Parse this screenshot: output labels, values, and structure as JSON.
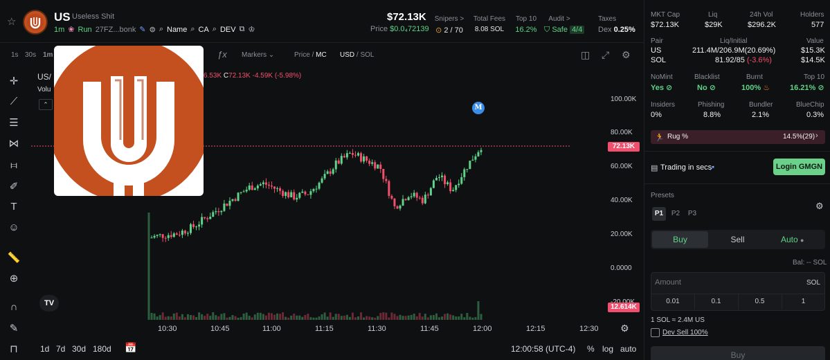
{
  "token": {
    "symbol": "US",
    "name": "Useless Shit",
    "age": "1m",
    "run_label": "Run",
    "address": "27FZ...bonk",
    "name_label": "Name",
    "ca_label": "CA",
    "dev_label": "DEV"
  },
  "price": {
    "mc": "$72.13K",
    "price_label": "Price",
    "price_value": "$0.0₄72139"
  },
  "stats": [
    {
      "label": "Snipers >",
      "value": "2 / 70",
      "color": "#e6e6e6"
    },
    {
      "label": "Total Fees",
      "value": "8.08 SOL",
      "color": "#e6e6e6"
    },
    {
      "label": "Top 10",
      "value": "16.2%",
      "color": "#5fd38a"
    },
    {
      "label": "Audit >",
      "value": "Safe",
      "extra": "4/4",
      "color": "#5fd38a"
    },
    {
      "label": "Taxes",
      "value_prefix": "Dex",
      "value": "0.25%",
      "color": "#e6e6e6"
    }
  ],
  "toolbar": {
    "intervals": [
      "1s",
      "30s",
      "1m"
    ],
    "markers": "Markers",
    "price_mc_a": "Price",
    "price_mc_b": "MC",
    "usd_sol_a": "USD",
    "usd_sol_b": "SOL"
  },
  "legend": {
    "pair": "US/",
    "volume": "Volu",
    "ohlc_tail": "6.53K",
    "close_label": "C",
    "close": "72.13K",
    "change": "-4.59K (-5.98%)"
  },
  "marker_letter": "M",
  "y_ticks": [
    "100.00K",
    "80.00K",
    "60.00K",
    "40.00K",
    "20.00K",
    "0.0000",
    "-20.00K"
  ],
  "x_ticks": [
    "10:30",
    "10:45",
    "11:00",
    "11:15",
    "11:30",
    "11:45",
    "12:00",
    "12:15",
    "12:30"
  ],
  "current_price_tag": "72.13K",
  "volume_tag": "12.614K",
  "bottom": {
    "ranges": [
      "1d",
      "7d",
      "30d",
      "180d"
    ],
    "clock": "12:00:58 (UTC-4)",
    "percent": "%",
    "log": "log",
    "auto": "auto"
  },
  "chart_data": {
    "type": "candlestick",
    "x": [
      "10:28",
      "10:32",
      "10:36",
      "10:40",
      "10:44",
      "10:48",
      "10:52",
      "10:56",
      "11:00",
      "11:04",
      "11:08",
      "11:12",
      "11:16",
      "11:20",
      "11:24",
      "11:28",
      "11:32",
      "11:36",
      "11:40",
      "11:44",
      "11:48",
      "11:52",
      "11:56",
      "12:00"
    ],
    "close": [
      18000,
      19500,
      20500,
      24000,
      30000,
      36000,
      42000,
      48000,
      50000,
      46000,
      42000,
      44000,
      52000,
      62000,
      68000,
      64000,
      60000,
      36000,
      44000,
      40000,
      55000,
      46000,
      60000,
      72130
    ],
    "ylim": [
      -20000,
      100000
    ]
  },
  "panel": {
    "metrics_top": [
      {
        "label": "MKT Cap",
        "value": "$72.13K"
      },
      {
        "label": "Liq",
        "value": "$29K"
      },
      {
        "label": "24h Vol",
        "value": "$296.2K"
      },
      {
        "label": "Holders",
        "value": "577"
      }
    ],
    "pair_header": {
      "pair": "Pair",
      "liq": "Liq/Initial",
      "value": "Value"
    },
    "pair_rows": [
      {
        "name": "US",
        "liq": "211.4M/206.9M(20.69%)",
        "value": "$15.3K"
      },
      {
        "name": "SOL",
        "liq_a": "81.92/85",
        "liq_b": "(-3.6%)",
        "value": "$14.5K"
      }
    ],
    "flags1": [
      {
        "label": "NoMint",
        "value": "Yes"
      },
      {
        "label": "Blacklist",
        "value": "No"
      },
      {
        "label": "Burnt",
        "value": "100%"
      },
      {
        "label": "Top 10",
        "value": "16.21%"
      }
    ],
    "flags2": [
      {
        "label": "Insiders",
        "value": "0%"
      },
      {
        "label": "Phishing",
        "value": "8.8%"
      },
      {
        "label": "Bundler",
        "value": "2.1%"
      },
      {
        "label": "BlueChip",
        "value": "0.3%"
      }
    ],
    "rug_label": "Rug %",
    "rug_value": "14.5%(29)",
    "trading_label": "Trading in secs",
    "login": "Login GMGN",
    "presets_label": "Presets",
    "presets": [
      "P1",
      "P2",
      "P3"
    ],
    "tabs": [
      "Buy",
      "Sell",
      "Auto"
    ],
    "bal": "Bal: -- SOL",
    "amount_placeholder": "Amount",
    "amount_unit": "SOL",
    "quick_amounts": [
      "0.01",
      "0.1",
      "0.5",
      "1"
    ],
    "conversion": "1 SOL ≈ 2.4M US",
    "dev_sell": "Dev Sell 100%",
    "buy_button": "Buy"
  }
}
